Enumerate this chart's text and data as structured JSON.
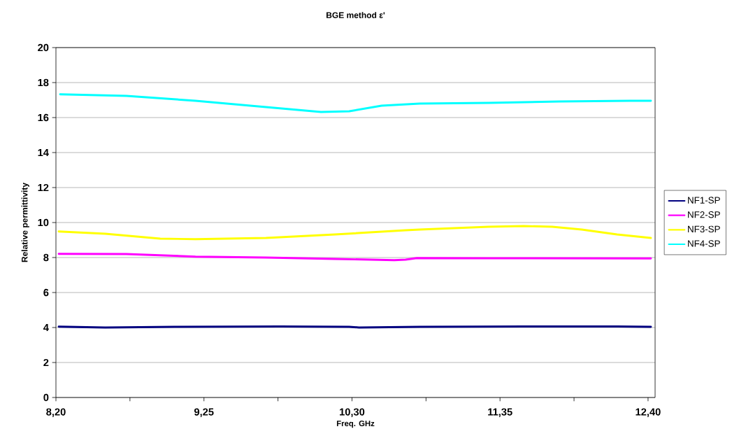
{
  "chart_data": {
    "type": "line",
    "title": "BGE method ε'",
    "xlabel": "Freq. GHz",
    "ylabel": "Relative permittivity",
    "xlim": [
      8.2,
      12.45
    ],
    "ylim": [
      0,
      20
    ],
    "xticks": [
      {
        "value": 8.2,
        "label": "8,20"
      },
      {
        "value": 8.725,
        "label": null
      },
      {
        "value": 9.25,
        "label": "9,25"
      },
      {
        "value": 9.775,
        "label": null
      },
      {
        "value": 10.3,
        "label": "10,30"
      },
      {
        "value": 10.825,
        "label": null
      },
      {
        "value": 11.35,
        "label": "11,35"
      },
      {
        "value": 11.875,
        "label": null
      },
      {
        "value": 12.4,
        "label": "12,40"
      }
    ],
    "yticks": [
      0,
      2,
      4,
      6,
      8,
      10,
      12,
      14,
      16,
      18,
      20
    ],
    "grid": "y",
    "legend": "right",
    "marker": "none",
    "line_style": "solid",
    "series": [
      {
        "name": "NF1-SP",
        "color": "#000080",
        "x": [
          8.22,
          8.55,
          9.04,
          9.79,
          10.28,
          10.35,
          10.78,
          11.52,
          12.18,
          12.42
        ],
        "values": [
          4.05,
          4.0,
          4.04,
          4.06,
          4.04,
          4.0,
          4.04,
          4.06,
          4.06,
          4.04
        ]
      },
      {
        "name": "NF2-SP",
        "color": "#ff00ff",
        "x": [
          8.22,
          8.7,
          9.19,
          9.69,
          10.18,
          10.6,
          10.68,
          10.76,
          11.27,
          12.42
        ],
        "values": [
          8.21,
          8.2,
          8.05,
          8.0,
          7.92,
          7.85,
          7.88,
          7.97,
          7.96,
          7.95
        ]
      },
      {
        "name": "NF3-SP",
        "color": "#ffff00",
        "x": [
          8.22,
          8.55,
          8.94,
          9.19,
          9.69,
          10.18,
          10.68,
          10.78,
          11.27,
          11.52,
          11.72,
          11.93,
          12.18,
          12.42
        ],
        "values": [
          9.49,
          9.36,
          9.08,
          9.05,
          9.12,
          9.32,
          9.56,
          9.6,
          9.76,
          9.8,
          9.76,
          9.6,
          9.32,
          9.12
        ]
      },
      {
        "name": "NF4-SP",
        "color": "#00ffff",
        "x": [
          8.23,
          8.7,
          9.19,
          9.69,
          10.08,
          10.28,
          10.51,
          10.78,
          11.27,
          11.77,
          12.27,
          12.42
        ],
        "values": [
          17.33,
          17.24,
          16.96,
          16.6,
          16.32,
          16.36,
          16.68,
          16.8,
          16.84,
          16.92,
          16.96,
          16.96
        ]
      }
    ]
  }
}
